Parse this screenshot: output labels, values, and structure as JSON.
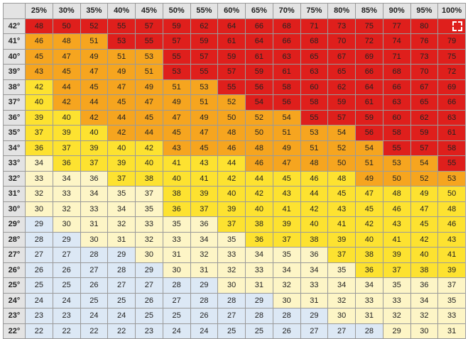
{
  "table": {
    "columns": [
      "25%",
      "30%",
      "35%",
      "40%",
      "45%",
      "50%",
      "55%",
      "60%",
      "65%",
      "70%",
      "75%",
      "80%",
      "85%",
      "90%",
      "95%",
      "100%"
    ],
    "rows": [
      {
        "label": "42°",
        "values": [
          48,
          50,
          52,
          55,
          57,
          59,
          62,
          64,
          66,
          68,
          71,
          73,
          75,
          77,
          80,
          ""
        ]
      },
      {
        "label": "41°",
        "values": [
          46,
          48,
          51,
          53,
          55,
          57,
          59,
          61,
          64,
          66,
          68,
          70,
          72,
          74,
          76,
          79
        ]
      },
      {
        "label": "40°",
        "values": [
          45,
          47,
          49,
          51,
          53,
          55,
          57,
          59,
          61,
          63,
          65,
          67,
          69,
          71,
          73,
          75
        ]
      },
      {
        "label": "39°",
        "values": [
          43,
          45,
          47,
          49,
          51,
          53,
          55,
          57,
          59,
          61,
          63,
          65,
          66,
          68,
          70,
          72
        ]
      },
      {
        "label": "38°",
        "values": [
          42,
          44,
          45,
          47,
          49,
          51,
          53,
          55,
          56,
          58,
          60,
          62,
          64,
          66,
          67,
          69
        ]
      },
      {
        "label": "37°",
        "values": [
          40,
          42,
          44,
          45,
          47,
          49,
          51,
          52,
          54,
          56,
          58,
          59,
          61,
          63,
          65,
          66
        ]
      },
      {
        "label": "36°",
        "values": [
          39,
          40,
          42,
          44,
          45,
          47,
          49,
          50,
          52,
          54,
          55,
          57,
          59,
          60,
          62,
          63
        ]
      },
      {
        "label": "35°",
        "values": [
          37,
          39,
          40,
          42,
          44,
          45,
          47,
          48,
          50,
          51,
          53,
          54,
          56,
          58,
          59,
          61
        ]
      },
      {
        "label": "34°",
        "values": [
          36,
          37,
          39,
          40,
          42,
          43,
          45,
          46,
          48,
          49,
          51,
          52,
          54,
          55,
          57,
          58
        ]
      },
      {
        "label": "33°",
        "values": [
          34,
          36,
          37,
          39,
          40,
          41,
          43,
          44,
          46,
          47,
          48,
          50,
          51,
          53,
          54,
          55
        ]
      },
      {
        "label": "32°",
        "values": [
          33,
          34,
          36,
          37,
          38,
          40,
          41,
          42,
          44,
          45,
          46,
          48,
          49,
          50,
          52,
          53
        ]
      },
      {
        "label": "31°",
        "values": [
          32,
          33,
          34,
          35,
          37,
          38,
          39,
          40,
          42,
          43,
          44,
          45,
          47,
          48,
          49,
          50
        ]
      },
      {
        "label": "30°",
        "values": [
          30,
          32,
          33,
          34,
          35,
          36,
          37,
          39,
          40,
          41,
          42,
          43,
          45,
          46,
          47,
          48
        ]
      },
      {
        "label": "29°",
        "values": [
          29,
          30,
          31,
          32,
          33,
          35,
          36,
          37,
          38,
          39,
          40,
          41,
          42,
          43,
          45,
          46
        ]
      },
      {
        "label": "28°",
        "values": [
          28,
          29,
          30,
          31,
          32,
          33,
          34,
          35,
          36,
          37,
          38,
          39,
          40,
          41,
          42,
          43
        ]
      },
      {
        "label": "27°",
        "values": [
          27,
          27,
          28,
          29,
          30,
          31,
          32,
          33,
          34,
          35,
          36,
          37,
          38,
          39,
          40,
          41
        ]
      },
      {
        "label": "26°",
        "values": [
          26,
          26,
          27,
          28,
          29,
          30,
          31,
          32,
          33,
          34,
          34,
          35,
          36,
          37,
          38,
          39
        ]
      },
      {
        "label": "25°",
        "values": [
          25,
          25,
          26,
          27,
          27,
          28,
          29,
          30,
          31,
          32,
          33,
          34,
          34,
          35,
          36,
          37
        ]
      },
      {
        "label": "24°",
        "values": [
          24,
          24,
          25,
          25,
          26,
          27,
          28,
          28,
          29,
          30,
          31,
          32,
          33,
          33,
          34,
          35
        ]
      },
      {
        "label": "23°",
        "values": [
          23,
          23,
          24,
          24,
          25,
          25,
          26,
          27,
          28,
          28,
          29,
          30,
          31,
          32,
          32,
          33
        ]
      },
      {
        "label": "22°",
        "values": [
          22,
          22,
          22,
          22,
          23,
          24,
          24,
          25,
          25,
          26,
          27,
          27,
          28,
          29,
          30,
          31
        ]
      }
    ],
    "colors": [
      "rrrrrrrrrrrrrrrr",
      "ooorrrrrrrrrrrrr",
      "ooooorrrrrrrrrrr",
      "ooooorrrrrrrrrrr",
      "yoooooorrrrrrrrr",
      "yooooooorrrrrrrr",
      "yyoooooooorrrrrr",
      "yyyooooooooorrrr",
      "yyyyyoooooooorrr",
      "pyyyyyyyooooooor",
      "pppyyyyyyyyyoooo",
      "pppppyyyyyyyyyyy",
      "pppppyyyyyyyyyyy",
      "bppppppyyyyyyyyy",
      "bbppppppyyyyyyyy",
      "bbbbpppppppyyyyy",
      "bbbbbpppppppyyyy",
      "bbbbbbbppppppppp",
      "bbbbbbbbbppppppp",
      "bbbbbbbbbbbppppp",
      "bbbbbbbbbbbbbppp"
    ]
  },
  "icon": "fullscreen-icon"
}
